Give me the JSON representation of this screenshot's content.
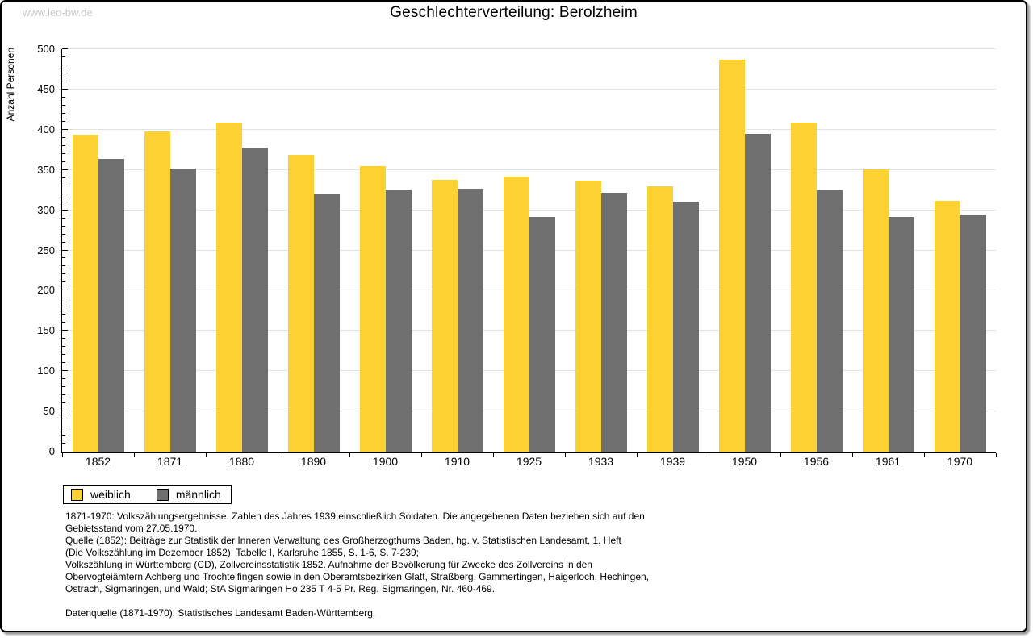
{
  "watermark": "www.leo-bw.de",
  "title": "Geschlechterverteilung: Berolzheim",
  "chart_data": {
    "type": "bar",
    "title": "Geschlechterverteilung: Berolzheim",
    "xlabel": "",
    "ylabel": "Anzahl Personen",
    "ylim": [
      0,
      500
    ],
    "y_major_step": 50,
    "y_minor_step": 10,
    "grid": true,
    "legend_position": "bottom-left",
    "categories": [
      "1852",
      "1871",
      "1880",
      "1890",
      "1900",
      "1910",
      "1925",
      "1933",
      "1939",
      "1950",
      "1956",
      "1961",
      "1970"
    ],
    "series": [
      {
        "name": "weiblich",
        "color": "#FBD232",
        "values": [
          394,
          398,
          409,
          369,
          355,
          338,
          342,
          337,
          330,
          487,
          409,
          351,
          312
        ]
      },
      {
        "name": "männlich",
        "color": "#6F6F6F",
        "values": [
          364,
          352,
          378,
          321,
          326,
          327,
          292,
          322,
          311,
          395,
          325,
          292,
          295
        ]
      }
    ]
  },
  "colors": {
    "weiblich": "#FBD232",
    "maennlich": "#6F6F6F",
    "gridline": "#E2E2E2",
    "axis": "#000000",
    "watermark": "#C9C9C9"
  },
  "footer": {
    "notes": "1871-1970: Volkszählungsergebnisse. Zahlen des Jahres 1939 einschließlich Soldaten. Die angegebenen Daten beziehen sich auf den\nGebietsstand vom 27.05.1970.\nQuelle (1852): Beiträge zur Statistik der Inneren Verwaltung des Großherzogthums Baden, hg. v. Statistischen Landesamt, 1. Heft\n(Die Volkszählung im Dezember 1852), Tabelle I, Karlsruhe 1855, S. 1-6, S. 7-239;\nVolkszählung in Württemberg (CD), Zollvereinsstatistik 1852. Aufnahme der Bevölkerung für Zwecke des Zollvereins in den\nObervogteiämtern Achberg und Trochtelfingen sowie in den Oberamtsbezirken Glatt, Straßberg, Gammertingen, Haigerloch, Hechingen,\nOstrach, Sigmaringen, und Wald; StA Sigmaringen Ho 235 T 4-5 Pr. Reg. Sigmaringen, Nr. 460-469.",
    "source": "Datenquelle (1871-1970): Statistisches Landesamt Baden-Württemberg."
  }
}
